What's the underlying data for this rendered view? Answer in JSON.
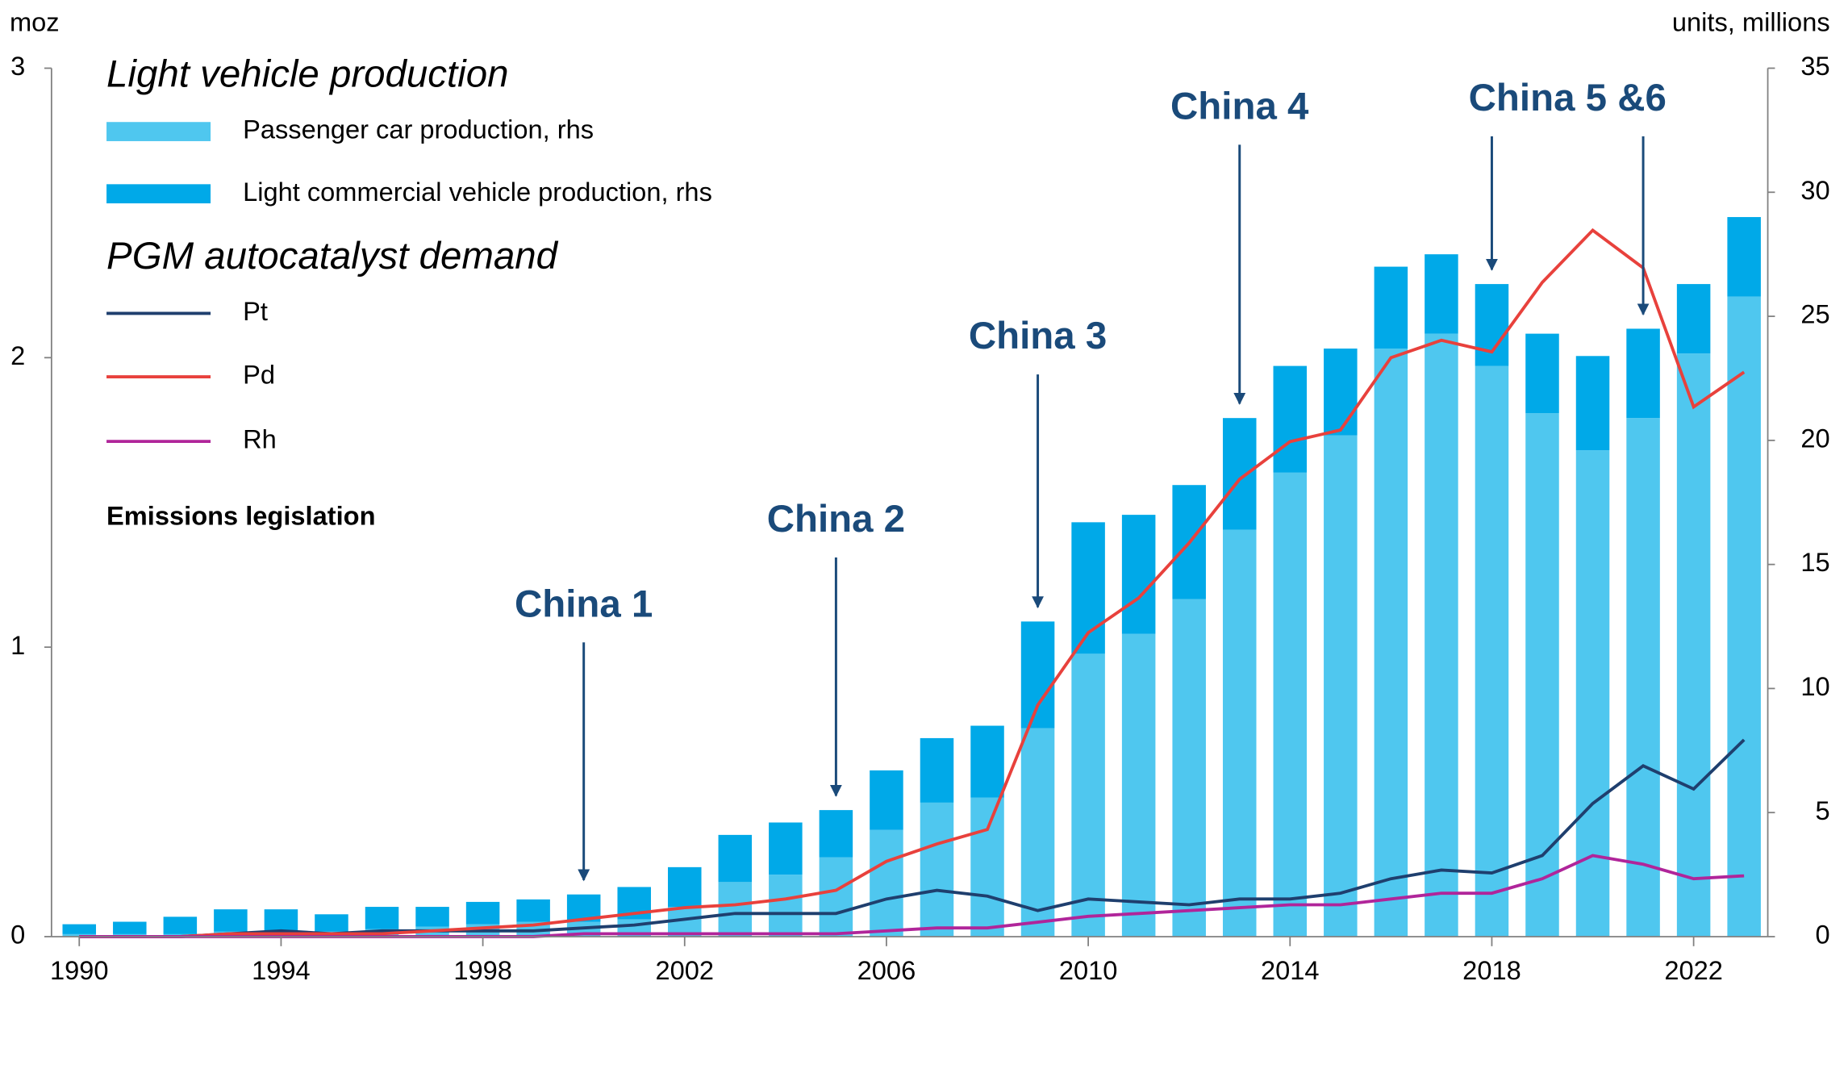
{
  "chart_data": {
    "type": "bar-line",
    "x": [
      1990,
      1991,
      1992,
      1993,
      1994,
      1995,
      1996,
      1997,
      1998,
      1999,
      2000,
      2001,
      2002,
      2003,
      2004,
      2005,
      2006,
      2007,
      2008,
      2009,
      2010,
      2011,
      2012,
      2013,
      2014,
      2015,
      2016,
      2017,
      2018,
      2019,
      2020,
      2021,
      2022,
      2023
    ],
    "xlim": [
      1989.45,
      2023.47
    ],
    "xticks": [
      1990,
      1994,
      1998,
      2002,
      2006,
      2010,
      2014,
      2018,
      2022
    ],
    "y_label": "moz",
    "y2_label": "units, millions",
    "ylim": [
      0,
      3
    ],
    "yticks": [
      0,
      1,
      2,
      3
    ],
    "y2lim": [
      0,
      35
    ],
    "y2ticks": [
      0,
      5,
      10,
      15,
      20,
      25,
      30,
      35
    ],
    "legend_title": "Light vehicle production",
    "legend_title2": "PGM autocatalyst demand",
    "legend_title3": "Emissions legislation",
    "series": [
      {
        "name": "Passenger car production, rhs",
        "type": "bar",
        "axis": "y2",
        "color": "#4fc7ef",
        "values": [
          0.1,
          0.1,
          0.1,
          0.2,
          0.2,
          0.2,
          0.3,
          0.4,
          0.5,
          0.6,
          0.6,
          0.7,
          1.2,
          2.2,
          2.5,
          3.2,
          4.3,
          5.4,
          5.6,
          8.4,
          11.4,
          12.2,
          13.6,
          16.4,
          18.7,
          20.2,
          23.7,
          24.3,
          23.0,
          21.1,
          19.6,
          20.9,
          23.5,
          25.8
        ]
      },
      {
        "name": "Light commercial vehicle production, rhs",
        "type": "bar",
        "axis": "y2",
        "color": "#00a9e8",
        "values": [
          0.4,
          0.5,
          0.7,
          0.9,
          0.9,
          0.7,
          0.9,
          0.8,
          0.9,
          0.9,
          1.1,
          1.3,
          1.6,
          1.9,
          2.1,
          1.9,
          2.4,
          2.6,
          2.9,
          4.3,
          5.3,
          4.8,
          4.6,
          4.5,
          4.3,
          3.5,
          3.3,
          3.2,
          3.3,
          3.2,
          3.8,
          3.6,
          2.8,
          3.2
        ]
      },
      {
        "name": "Pt",
        "type": "line",
        "axis": "y",
        "color": "#1f3f6e",
        "values": [
          0.0,
          0.0,
          0.0,
          0.01,
          0.02,
          0.01,
          0.02,
          0.02,
          0.02,
          0.02,
          0.03,
          0.04,
          0.06,
          0.08,
          0.08,
          0.08,
          0.13,
          0.16,
          0.14,
          0.09,
          0.13,
          0.12,
          0.11,
          0.13,
          0.13,
          0.15,
          0.2,
          0.23,
          0.22,
          0.28,
          0.46,
          0.59,
          0.51,
          0.68
        ]
      },
      {
        "name": "Pd",
        "type": "line",
        "axis": "y",
        "color": "#e8413c",
        "values": [
          0.0,
          0.0,
          0.0,
          0.01,
          0.01,
          0.01,
          0.01,
          0.02,
          0.03,
          0.04,
          0.06,
          0.08,
          0.1,
          0.11,
          0.13,
          0.16,
          0.26,
          0.32,
          0.37,
          0.8,
          1.05,
          1.17,
          1.36,
          1.58,
          1.71,
          1.75,
          2.0,
          2.06,
          2.02,
          2.26,
          2.44,
          2.31,
          1.83,
          1.95
        ]
      },
      {
        "name": "Rh",
        "type": "line",
        "axis": "y",
        "color": "#b0259a",
        "values": [
          0.0,
          0.0,
          0.0,
          0.0,
          0.0,
          0.0,
          0.0,
          0.0,
          0.0,
          0.0,
          0.01,
          0.01,
          0.01,
          0.01,
          0.01,
          0.01,
          0.02,
          0.03,
          0.03,
          0.05,
          0.07,
          0.08,
          0.09,
          0.1,
          0.11,
          0.11,
          0.13,
          0.15,
          0.15,
          0.2,
          0.28,
          0.25,
          0.2,
          0.21
        ]
      }
    ],
    "annotations": [
      {
        "text": "China 1",
        "x": [
          2000
        ]
      },
      {
        "text": "China 2",
        "x": [
          2005
        ]
      },
      {
        "text": "China 3",
        "x": [
          2009
        ]
      },
      {
        "text": "China 4",
        "x": [
          2013
        ]
      },
      {
        "text": "China 5 &6",
        "x": [
          2018,
          2021
        ]
      }
    ]
  }
}
